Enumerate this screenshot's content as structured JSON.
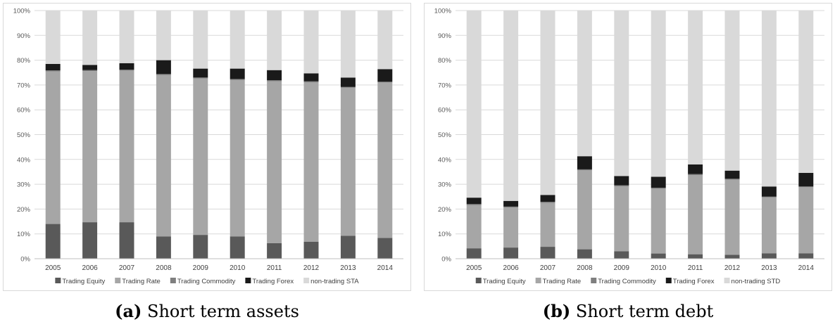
{
  "chart_data": [
    {
      "type": "bar",
      "stacked": true,
      "percent": true,
      "categories": [
        "2005",
        "2006",
        "2007",
        "2008",
        "2009",
        "2010",
        "2011",
        "2012",
        "2013",
        "2014"
      ],
      "ylim": [
        0,
        100
      ],
      "yticks": [
        "0%",
        "10%",
        "20%",
        "30%",
        "40%",
        "50%",
        "60%",
        "70%",
        "80%",
        "90%",
        "100%"
      ],
      "legend_position": "bottom",
      "series": [
        {
          "name": "Trading Equity",
          "color": "#595959",
          "values": [
            14,
            14.7,
            14.7,
            9,
            9.6,
            9,
            6.3,
            6.8,
            9.2,
            8.4
          ]
        },
        {
          "name": "Trading Rate",
          "color": "#a6a6a6",
          "values": [
            61.5,
            60.9,
            61.1,
            65,
            63,
            63,
            65.2,
            64.3,
            59.7,
            62.6
          ]
        },
        {
          "name": "Trading Commodity",
          "color": "#7f7f7f",
          "values": [
            0.4,
            0.4,
            0.4,
            0.4,
            0.4,
            0.4,
            0.4,
            0.4,
            0.3,
            0.3
          ]
        },
        {
          "name": "Trading Forex",
          "color": "#1a1a1a",
          "values": [
            2.6,
            2.1,
            2.6,
            5.6,
            3.6,
            4.2,
            4.1,
            3.2,
            3.8,
            5.1
          ]
        },
        {
          "name": "non-trading STA",
          "color": "#d9d9d9",
          "values": [
            21.5,
            21.9,
            21.2,
            20,
            23.4,
            23.4,
            24,
            25.3,
            27,
            23.6
          ]
        }
      ]
    },
    {
      "type": "bar",
      "stacked": true,
      "percent": true,
      "categories": [
        "2005",
        "2006",
        "2007",
        "2008",
        "2009",
        "2010",
        "2011",
        "2012",
        "2013",
        "2014"
      ],
      "ylim": [
        0,
        100
      ],
      "yticks": [
        "0%",
        "10%",
        "20%",
        "30%",
        "40%",
        "50%",
        "60%",
        "70%",
        "80%",
        "90%",
        "100%"
      ],
      "legend_position": "bottom",
      "series": [
        {
          "name": "Trading Equity",
          "color": "#595959",
          "values": [
            4.2,
            4.5,
            4.8,
            3.8,
            3,
            2.1,
            1.8,
            1.6,
            2.2,
            2.2
          ]
        },
        {
          "name": "Trading Rate",
          "color": "#a6a6a6",
          "values": [
            17.4,
            16.1,
            17.7,
            31.8,
            26.2,
            26.1,
            31.9,
            30.2,
            22.5,
            26.6
          ]
        },
        {
          "name": "Trading Commodity",
          "color": "#7f7f7f",
          "values": [
            0.4,
            0.4,
            0.4,
            0.4,
            0.4,
            0.4,
            0.4,
            0.4,
            0.3,
            0.3
          ]
        },
        {
          "name": "Trading Forex",
          "color": "#1a1a1a",
          "values": [
            2.6,
            2.3,
            2.8,
            5.3,
            3.7,
            4.4,
            3.9,
            3.3,
            4.1,
            5.5
          ]
        },
        {
          "name": "non-trading STD",
          "color": "#d9d9d9",
          "values": [
            75.4,
            76.7,
            74.3,
            58.7,
            66.7,
            67,
            62,
            64.5,
            70.9,
            65.4
          ]
        }
      ]
    }
  ],
  "captions": [
    {
      "letter": "(a)",
      "text": "Short term assets"
    },
    {
      "letter": "(b)",
      "text": "Short term debt"
    }
  ]
}
